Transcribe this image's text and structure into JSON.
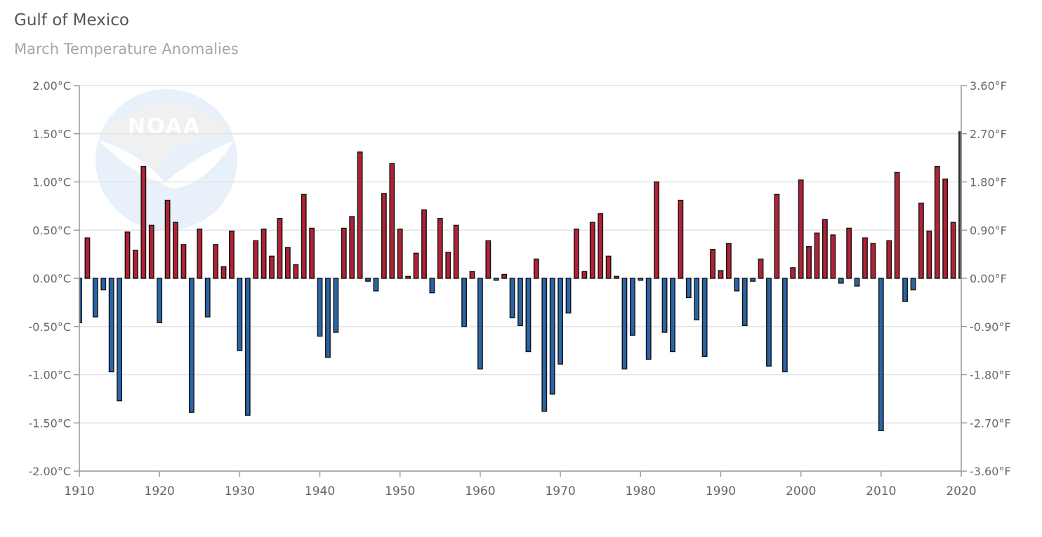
{
  "title": "Gulf of Mexico",
  "subtitle": "March Temperature Anomalies",
  "logo_text": "NOAA",
  "colors": {
    "positive": "#b22234",
    "negative": "#2a64a6",
    "latest": "#000000"
  },
  "chart_data": {
    "type": "bar",
    "title": "Gulf of Mexico",
    "subtitle": "March Temperature Anomalies",
    "x": [
      1910,
      1911,
      1912,
      1913,
      1914,
      1915,
      1916,
      1917,
      1918,
      1919,
      1920,
      1921,
      1922,
      1923,
      1924,
      1925,
      1926,
      1927,
      1928,
      1929,
      1930,
      1931,
      1932,
      1933,
      1934,
      1935,
      1936,
      1937,
      1938,
      1939,
      1940,
      1941,
      1942,
      1943,
      1944,
      1945,
      1946,
      1947,
      1948,
      1949,
      1950,
      1951,
      1952,
      1953,
      1954,
      1955,
      1956,
      1957,
      1958,
      1959,
      1960,
      1961,
      1962,
      1963,
      1964,
      1965,
      1966,
      1967,
      1968,
      1969,
      1970,
      1971,
      1972,
      1973,
      1974,
      1975,
      1976,
      1977,
      1978,
      1979,
      1980,
      1981,
      1982,
      1983,
      1984,
      1985,
      1986,
      1987,
      1988,
      1989,
      1990,
      1991,
      1992,
      1993,
      1994,
      1995,
      1996,
      1997,
      1998,
      1999,
      2000,
      2001,
      2002,
      2003,
      2004,
      2005,
      2006,
      2007,
      2008,
      2009,
      2010,
      2011,
      2012,
      2013,
      2014,
      2015,
      2016,
      2017,
      2018,
      2019,
      2020
    ],
    "values": [
      -0.46,
      0.42,
      -0.4,
      -0.12,
      -0.97,
      -1.27,
      0.48,
      0.29,
      1.16,
      0.55,
      -0.46,
      0.81,
      0.58,
      0.35,
      -1.39,
      0.51,
      -0.4,
      0.35,
      0.12,
      0.49,
      -0.75,
      -1.42,
      0.39,
      0.51,
      0.23,
      0.62,
      0.32,
      0.14,
      0.87,
      0.52,
      -0.6,
      -0.82,
      -0.56,
      0.52,
      0.64,
      1.31,
      -0.03,
      -0.13,
      0.88,
      1.19,
      0.51,
      0.02,
      0.26,
      0.71,
      -0.15,
      0.62,
      0.27,
      0.55,
      -0.5,
      0.07,
      -0.94,
      0.39,
      -0.02,
      0.04,
      -0.41,
      -0.49,
      -0.76,
      0.2,
      -1.38,
      -1.2,
      -0.89,
      -0.36,
      0.51,
      0.07,
      0.58,
      0.67,
      0.23,
      0.02,
      -0.94,
      -0.59,
      -0.02,
      -0.84,
      1.0,
      -0.56,
      -0.76,
      0.81,
      -0.2,
      -0.43,
      -0.81,
      0.3,
      0.08,
      0.36,
      -0.13,
      -0.49,
      -0.03,
      0.2,
      -0.91,
      0.87,
      -0.97,
      0.11,
      1.02,
      0.33,
      0.47,
      0.61,
      0.45,
      -0.05,
      0.52,
      -0.08,
      0.42,
      0.36,
      -1.58,
      0.39,
      1.1,
      -0.24,
      -0.12,
      0.78,
      0.49,
      1.16,
      1.03,
      0.58,
      1.52
    ],
    "xlim": [
      1910,
      2020
    ],
    "xticks": [
      "1910",
      "1920",
      "1930",
      "1940",
      "1950",
      "1960",
      "1970",
      "1980",
      "1990",
      "2000",
      "2010",
      "2020"
    ],
    "ylim": [
      -2.0,
      2.0
    ],
    "yticks_left": [
      "2.00°C",
      "1.50°C",
      "1.00°C",
      "0.50°C",
      "0.00°C",
      "-0.50°C",
      "-1.00°C",
      "-1.50°C",
      "-2.00°C"
    ],
    "yticks_right": [
      "3.60°F",
      "2.70°F",
      "1.80°F",
      "0.90°F",
      "0.00°F",
      "-0.90°F",
      "-1.80°F",
      "-2.70°F",
      "-3.60°F"
    ],
    "grid": true
  }
}
